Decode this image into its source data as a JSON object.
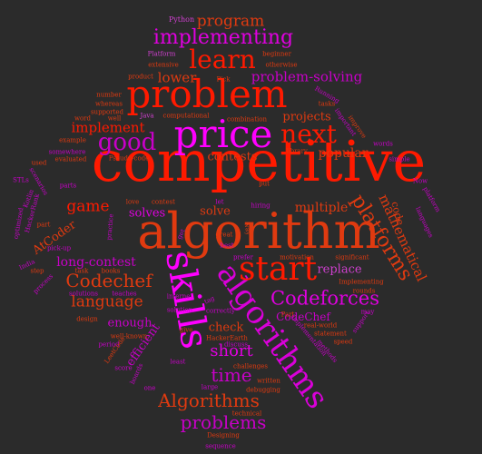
{
  "words": [
    {
      "text": "competitive",
      "color": "#ff1a00"
    },
    {
      "text": "algorithm",
      "color": "#e03a10"
    },
    {
      "text": "problem",
      "color": "#ff1a00"
    },
    {
      "text": "price",
      "color": "#ff00ff"
    },
    {
      "text": "skills",
      "color": "#ff00ff"
    },
    {
      "text": "algorithms",
      "color": "#d900d9"
    },
    {
      "text": "start",
      "color": "#ff1a00"
    },
    {
      "text": "next",
      "color": "#ff1a00"
    },
    {
      "text": "good",
      "color": "#c800c8"
    },
    {
      "text": "learn",
      "color": "#ff1a00"
    },
    {
      "text": "implementing",
      "color": "#e000e0"
    },
    {
      "text": "program",
      "color": "#e03a10"
    },
    {
      "text": "platforms",
      "color": "#e03a10"
    },
    {
      "text": "Codeforces",
      "color": "#e000e0"
    },
    {
      "text": "Codechef",
      "color": "#e03a10"
    },
    {
      "text": "Algorithms",
      "color": "#e03a10"
    },
    {
      "text": "problems",
      "color": "#c800c8"
    },
    {
      "text": "time",
      "color": "#c800c8"
    },
    {
      "text": "short",
      "color": "#e000e0"
    },
    {
      "text": "language",
      "color": "#e03a10"
    },
    {
      "text": "mathematical",
      "color": "#e03a10"
    },
    {
      "text": "game",
      "color": "#ff1a00"
    },
    {
      "text": "implement",
      "color": "#ff1a00"
    },
    {
      "text": "problem-solving",
      "color": "#c800c8"
    },
    {
      "text": "lower",
      "color": "#e03a10"
    },
    {
      "text": "projects",
      "color": "#e03a10"
    },
    {
      "text": "popular",
      "color": "#e03a10"
    },
    {
      "text": "contests",
      "color": "#e03a10"
    },
    {
      "text": "replace",
      "color": "#d040d0"
    },
    {
      "text": "multiple",
      "color": "#e03a10"
    },
    {
      "text": "solves",
      "color": "#e000e0"
    },
    {
      "text": "solve",
      "color": "#e03a10"
    },
    {
      "text": "long-contest",
      "color": "#c800c8"
    },
    {
      "text": "AtCoder",
      "color": "#e03a10"
    },
    {
      "text": "efficient",
      "color": "#c800c8"
    },
    {
      "text": "enough",
      "color": "#c800c8"
    },
    {
      "text": "check",
      "color": "#e03a10"
    },
    {
      "text": "CodeChef",
      "color": "#c800c8"
    },
    {
      "text": "code",
      "color": "#e03a10"
    },
    {
      "text": "Python",
      "color": "#d040d0"
    },
    {
      "text": "Platform",
      "color": "#d040d0"
    },
    {
      "text": "beginner",
      "color": "#e03a10"
    },
    {
      "text": "otherwise",
      "color": "#e03a10"
    },
    {
      "text": "product",
      "color": "#e03a10"
    },
    {
      "text": "extensive",
      "color": "#e03a10"
    },
    {
      "text": "Pick",
      "color": "#e03a10"
    },
    {
      "text": "Running",
      "color": "#c800c8"
    },
    {
      "text": "number",
      "color": "#e03a10"
    },
    {
      "text": "whereas",
      "color": "#e03a10"
    },
    {
      "text": "supported",
      "color": "#e03a10"
    },
    {
      "text": "tasks",
      "color": "#e03a10"
    },
    {
      "text": "Java",
      "color": "#d040d0"
    },
    {
      "text": "computational",
      "color": "#e03a10"
    },
    {
      "text": "combination",
      "color": "#e03a10"
    },
    {
      "text": "word",
      "color": "#e03a10"
    },
    {
      "text": "well",
      "color": "#e03a10"
    },
    {
      "text": "important",
      "color": "#c800c8"
    },
    {
      "text": "improve",
      "color": "#e03a10"
    },
    {
      "text": "example",
      "color": "#e03a10"
    },
    {
      "text": "somewhere",
      "color": "#c800c8"
    },
    {
      "text": "evaluated",
      "color": "#e03a10"
    },
    {
      "text": "used",
      "color": "#e03a10"
    },
    {
      "text": "Pseudo-code",
      "color": "#e03a10"
    },
    {
      "text": "library",
      "color": "#e03a10"
    },
    {
      "text": "words",
      "color": "#c800c8"
    },
    {
      "text": "simple",
      "color": "#c800c8"
    },
    {
      "text": "scenarios",
      "color": "#c800c8"
    },
    {
      "text": "Now",
      "color": "#c800c8"
    },
    {
      "text": "STLs",
      "color": "#c800c8"
    },
    {
      "text": "parts",
      "color": "#c800c8"
    },
    {
      "text": "put",
      "color": "#e03a10"
    },
    {
      "text": "platform",
      "color": "#c800c8"
    },
    {
      "text": "languages",
      "color": "#c800c8"
    },
    {
      "text": "Kotlin",
      "color": "#c800c8"
    },
    {
      "text": "HackerRank",
      "color": "#c800c8"
    },
    {
      "text": "love",
      "color": "#e03a10"
    },
    {
      "text": "contest",
      "color": "#e03a10"
    },
    {
      "text": "let",
      "color": "#c800c8"
    },
    {
      "text": "hiring",
      "color": "#c800c8"
    },
    {
      "text": "way",
      "color": "#e03a10"
    },
    {
      "text": "optimized",
      "color": "#c800c8"
    },
    {
      "text": "part",
      "color": "#e03a10"
    },
    {
      "text": "practice",
      "color": "#c800c8"
    },
    {
      "text": "get",
      "color": "#c800c8"
    },
    {
      "text": "great",
      "color": "#e03a10"
    },
    {
      "text": "best",
      "color": "#c800c8"
    },
    {
      "text": "pick-up",
      "color": "#c800c8"
    },
    {
      "text": "India",
      "color": "#c800c8"
    },
    {
      "text": "prefer",
      "color": "#c800c8"
    },
    {
      "text": "motivation",
      "color": "#e03a10"
    },
    {
      "text": "significant",
      "color": "#e03a10"
    },
    {
      "text": "step",
      "color": "#e03a10"
    },
    {
      "text": "task",
      "color": "#e03a10"
    },
    {
      "text": "books",
      "color": "#e03a10"
    },
    {
      "text": "process",
      "color": "#c800c8"
    },
    {
      "text": "Implementing",
      "color": "#e03a10"
    },
    {
      "text": "rounds",
      "color": "#e03a10"
    },
    {
      "text": "solutions",
      "color": "#c800c8"
    },
    {
      "text": "teaches",
      "color": "#c800c8"
    },
    {
      "text": "internet",
      "color": "#c800c8"
    },
    {
      "text": "tag",
      "color": "#c800c8"
    },
    {
      "text": "solution",
      "color": "#c800c8"
    },
    {
      "text": "Part",
      "color": "#e03a10"
    },
    {
      "text": "may",
      "color": "#c800c8"
    },
    {
      "text": "design",
      "color": "#e03a10"
    },
    {
      "text": "give",
      "color": "#e03a10"
    },
    {
      "text": "correctly",
      "color": "#c800c8"
    },
    {
      "text": "real-world",
      "color": "#e03a10"
    },
    {
      "text": "statement",
      "color": "#e03a10"
    },
    {
      "text": "speed",
      "color": "#e03a10"
    },
    {
      "text": "support",
      "color": "#c800c8"
    },
    {
      "text": "well-known",
      "color": "#e03a10"
    },
    {
      "text": "HackerEarth",
      "color": "#e03a10"
    },
    {
      "text": "period",
      "color": "#c800c8"
    },
    {
      "text": "discuss",
      "color": "#c800c8"
    },
    {
      "text": "methods",
      "color": "#c800c8"
    },
    {
      "text": "LeetCode",
      "color": "#e03a10"
    },
    {
      "text": "score",
      "color": "#c800c8"
    },
    {
      "text": "implementation",
      "color": "#c800c8"
    },
    {
      "text": "least",
      "color": "#c800c8"
    },
    {
      "text": "challenges",
      "color": "#e03a10"
    },
    {
      "text": "boards",
      "color": "#c800c8"
    },
    {
      "text": "sequence",
      "color": "#c800c8"
    },
    {
      "text": "written",
      "color": "#e03a10"
    },
    {
      "text": "one",
      "color": "#c800c8"
    },
    {
      "text": "large",
      "color": "#c800c8"
    },
    {
      "text": "debugging",
      "color": "#e03a10"
    },
    {
      "text": "technical",
      "color": "#e03a10"
    },
    {
      "text": "Designing",
      "color": "#e03a10"
    }
  ]
}
